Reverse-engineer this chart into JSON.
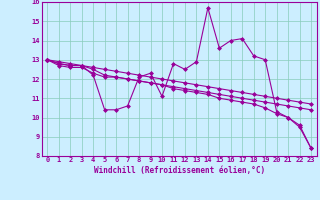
{
  "xlabel": "Windchill (Refroidissement éolien,°C)",
  "ylabel": "",
  "background_color": "#cceeff",
  "grid_color": "#88ccbb",
  "line_color": "#990099",
  "xlim": [
    -0.5,
    23.5
  ],
  "ylim": [
    8,
    16
  ],
  "xticks": [
    0,
    1,
    2,
    3,
    4,
    5,
    6,
    7,
    8,
    9,
    10,
    11,
    12,
    13,
    14,
    15,
    16,
    17,
    18,
    19,
    20,
    21,
    22,
    23
  ],
  "yticks": [
    8,
    9,
    10,
    11,
    12,
    13,
    14,
    15,
    16
  ],
  "series": [
    [
      13.0,
      12.8,
      12.7,
      12.7,
      12.2,
      10.4,
      10.4,
      10.6,
      12.1,
      12.3,
      11.1,
      12.8,
      12.5,
      12.9,
      15.7,
      13.6,
      14.0,
      14.1,
      13.2,
      13.0,
      10.3,
      10.0,
      9.6,
      8.4
    ],
    [
      13.0,
      12.8,
      12.7,
      12.7,
      12.5,
      12.2,
      12.1,
      12.0,
      11.9,
      11.8,
      11.7,
      11.6,
      11.5,
      11.4,
      11.3,
      11.2,
      11.1,
      11.0,
      10.9,
      10.8,
      10.7,
      10.6,
      10.5,
      10.4
    ],
    [
      13.0,
      12.9,
      12.8,
      12.7,
      12.6,
      12.5,
      12.4,
      12.3,
      12.2,
      12.1,
      12.0,
      11.9,
      11.8,
      11.7,
      11.6,
      11.5,
      11.4,
      11.3,
      11.2,
      11.1,
      11.0,
      10.9,
      10.8,
      10.7
    ],
    [
      13.0,
      12.7,
      12.6,
      12.6,
      12.3,
      12.1,
      12.1,
      12.0,
      11.9,
      11.8,
      11.7,
      11.5,
      11.4,
      11.3,
      11.2,
      11.0,
      10.9,
      10.8,
      10.7,
      10.5,
      10.2,
      10.0,
      9.5,
      8.4
    ]
  ]
}
